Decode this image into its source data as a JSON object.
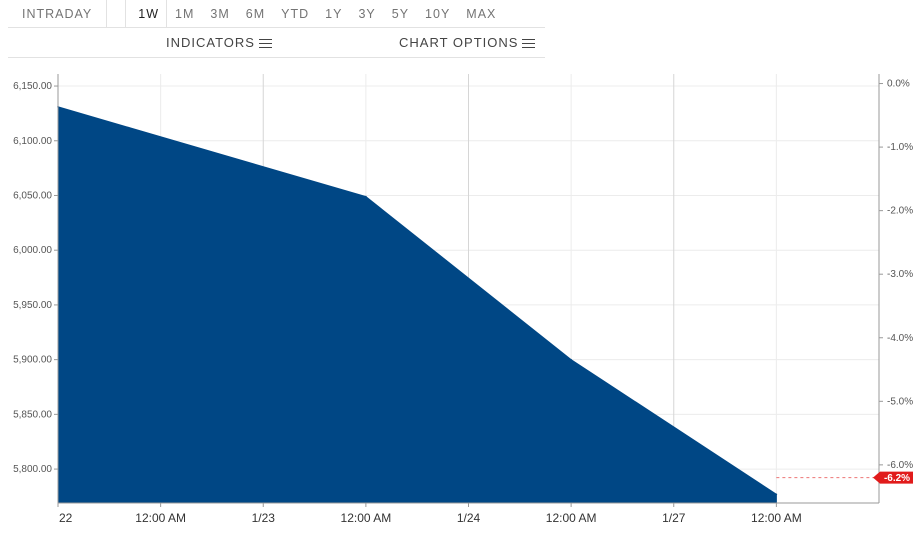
{
  "range_tabs": [
    {
      "label": "INTRADAY",
      "active": false
    },
    {
      "label": "1W",
      "active": true
    },
    {
      "label": "1M",
      "active": false
    },
    {
      "label": "3M",
      "active": false
    },
    {
      "label": "6M",
      "active": false
    },
    {
      "label": "YTD",
      "active": false
    },
    {
      "label": "1Y",
      "active": false
    },
    {
      "label": "3Y",
      "active": false
    },
    {
      "label": "5Y",
      "active": false
    },
    {
      "label": "10Y",
      "active": false
    },
    {
      "label": "MAX",
      "active": false
    }
  ],
  "options": {
    "indicators_label": "INDICATORS",
    "chart_options_label": "CHART OPTIONS"
  },
  "chart_data": {
    "type": "area",
    "title": "",
    "xlabel": "",
    "ylabel": "",
    "color": "#004785",
    "x_ticks": [
      "22",
      "12:00 AM",
      "1/23",
      "12:00 AM",
      "1/24",
      "12:00 AM",
      "1/27",
      "12:00 AM"
    ],
    "y_ticks": [
      "6,150.00",
      "6,100.00",
      "6,050.00",
      "6,000.00",
      "5,950.00",
      "5,900.00",
      "5,850.00",
      "5,800.00"
    ],
    "y_tick_values": [
      6150,
      6100,
      6050,
      6000,
      5950,
      5900,
      5850,
      5800
    ],
    "y2_ticks": [
      "0.0%",
      "-1.0%",
      "-2.0%",
      "-3.0%",
      "-4.0%",
      "-5.0%",
      "-6.0%"
    ],
    "y2_tick_values": [
      0,
      -1,
      -2,
      -3,
      -4,
      -5,
      -6
    ],
    "ylim": [
      5769,
      6161
    ],
    "y2lim": [
      -6.6,
      0.15
    ],
    "x_range": [
      0,
      8
    ],
    "series": [
      {
        "x": [
          0,
          3,
          5,
          7
        ],
        "values": [
          6131,
          6049,
          5900,
          5777
        ]
      }
    ],
    "last_change_label": "-6.2%",
    "last_change_value": -6.2,
    "last_marker_color": "#e11b1b"
  }
}
